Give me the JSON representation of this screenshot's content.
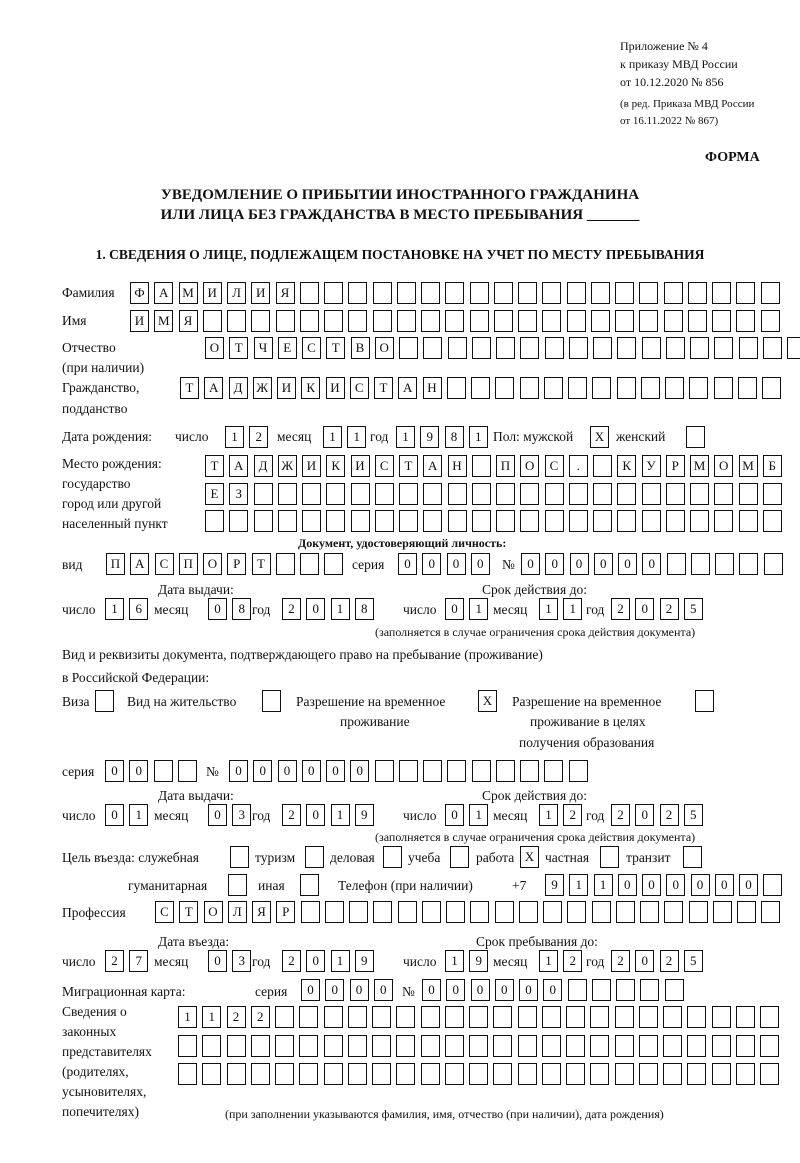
{
  "header": {
    "appendix": "Приложение № 4",
    "order": "к приказу МВД России",
    "order_date": "от 10.12.2020 № 856",
    "edition_1": "(в ред. Приказа МВД России",
    "edition_2": "от 16.11.2022 № 867)",
    "form_label": "ФОРМА",
    "title_1": "УВЕДОМЛЕНИЕ О ПРИБЫТИИ ИНОСТРАННОГО ГРАЖДАНИНА",
    "title_2": "ИЛИ ЛИЦА БЕЗ ГРАЖДАНСТВА В МЕСТО ПРЕБЫВАНИЯ _______",
    "section_1": "1. СВЕДЕНИЯ О ЛИЦЕ, ПОДЛЕЖАЩЕМ ПОСТАНОВКЕ НА УЧЕТ ПО МЕСТУ ПРЕБЫВАНИЯ"
  },
  "labels": {
    "surname": "Фамилия",
    "name": "Имя",
    "patronymic_1": "Отчество",
    "patronymic_2": "(при наличии)",
    "citizenship_1": "Гражданство,",
    "citizenship_2": "подданство",
    "birth_date": "Дата рождения:",
    "day": "число",
    "month": "месяц",
    "year": "год",
    "sex": "Пол: мужской",
    "female": "женский",
    "birthplace_1": "Место рождения:",
    "birthplace_2": "государство",
    "birthplace_3": "город или другой",
    "birthplace_4": "населенный пункт",
    "id_doc": "Документ, удостоверяющий личность:",
    "type": "вид",
    "series": "серия",
    "number": "№",
    "issue_date": "Дата выдачи:",
    "valid_until": "Срок действия до:",
    "validity_note": "(заполняется в случае ограничения срока действия документа)",
    "permit_doc_1": "Вид и реквизиты документа, подтверждающего право на пребывание (проживание)",
    "permit_doc_2": "в Российской Федерации:",
    "visa": "Виза",
    "residence": "Вид на жительство",
    "temp_permit_1": "Разрешение на временное",
    "temp_permit_2": "проживание",
    "edu_permit_1": "Разрешение на временное",
    "edu_permit_2": "проживание в целях",
    "edu_permit_3": "получения образования",
    "purpose": "Цель въезда: служебная",
    "tourism": "туризм",
    "business": "деловая",
    "study": "учеба",
    "work": "работа",
    "private": "частная",
    "transit": "транзит",
    "humanitarian": "гуманитарная",
    "other": "иная",
    "phone": "Телефон (при наличии)",
    "phone_prefix": "+7",
    "profession": "Профессия",
    "entry_date": "Дата въезда:",
    "stay_until": "Срок пребывания до:",
    "migration_card": "Миграционная карта:",
    "reps_1": "Сведения о",
    "reps_2": "законных",
    "reps_3": "представителях",
    "reps_4": "(родителях,",
    "reps_5": "усыновителях,",
    "reps_6": "попечителях)",
    "reps_note": "(при заполнении указываются фамилия, имя, отчество (при наличии), дата рождения)"
  },
  "person": {
    "surname": [
      "Ф",
      "А",
      "М",
      "И",
      "Л",
      "И",
      "Я",
      "",
      "",
      "",
      "",
      "",
      "",
      "",
      "",
      "",
      "",
      "",
      "",
      "",
      "",
      "",
      "",
      "",
      "",
      "",
      ""
    ],
    "name": [
      "И",
      "М",
      "Я",
      "",
      "",
      "",
      "",
      "",
      "",
      "",
      "",
      "",
      "",
      "",
      "",
      "",
      "",
      "",
      "",
      "",
      "",
      "",
      "",
      "",
      "",
      "",
      ""
    ],
    "patronymic": [
      "О",
      "Т",
      "Ч",
      "Е",
      "С",
      "Т",
      "В",
      "О",
      "",
      "",
      "",
      "",
      "",
      "",
      "",
      "",
      "",
      "",
      "",
      "",
      "",
      "",
      "",
      "",
      ""
    ],
    "citizenship": [
      "Т",
      "А",
      "Д",
      "Ж",
      "И",
      "К",
      "И",
      "С",
      "Т",
      "А",
      "Н",
      "",
      "",
      "",
      "",
      "",
      "",
      "",
      "",
      "",
      "",
      "",
      "",
      "",
      ""
    ],
    "birth_day": [
      "1",
      "2"
    ],
    "birth_month": [
      "1",
      "1"
    ],
    "birth_year": [
      "1",
      "9",
      "8",
      "1"
    ],
    "sex_male": [
      "X"
    ],
    "sex_female": [
      ""
    ],
    "birthplace_1": [
      "Т",
      "А",
      "Д",
      "Ж",
      "И",
      "К",
      "И",
      "С",
      "Т",
      "А",
      "Н",
      "",
      "П",
      "О",
      "С",
      ".",
      "",
      "К",
      "У",
      "Р",
      "М",
      "О",
      "М",
      "Б"
    ],
    "birthplace_2": [
      "Е",
      "З",
      "",
      "",
      "",
      "",
      "",
      "",
      "",
      "",
      "",
      "",
      "",
      "",
      "",
      "",
      "",
      "",
      "",
      "",
      "",
      "",
      "",
      ""
    ],
    "birthplace_3": [
      "",
      "",
      "",
      "",
      "",
      "",
      "",
      "",
      "",
      "",
      "",
      "",
      "",
      "",
      "",
      "",
      "",
      "",
      "",
      "",
      "",
      "",
      "",
      ""
    ]
  },
  "id_doc": {
    "type": [
      "П",
      "А",
      "С",
      "П",
      "О",
      "Р",
      "Т",
      "",
      "",
      ""
    ],
    "series": [
      "0",
      "0",
      "0",
      "0"
    ],
    "number": [
      "0",
      "0",
      "0",
      "0",
      "0",
      "0",
      "",
      "",
      "",
      "",
      ""
    ],
    "issue_day": [
      "1",
      "6"
    ],
    "issue_month": [
      "0",
      "8"
    ],
    "issue_year": [
      "2",
      "0",
      "1",
      "8"
    ],
    "valid_day": [
      "0",
      "1"
    ],
    "valid_month": [
      "1",
      "1"
    ],
    "valid_year": [
      "2",
      "0",
      "2",
      "5"
    ]
  },
  "permit": {
    "visa": [
      ""
    ],
    "residence": [
      ""
    ],
    "temp_permit": [
      "X"
    ],
    "edu_permit": [
      ""
    ],
    "series": [
      "0",
      "0",
      "",
      ""
    ],
    "number": [
      "0",
      "0",
      "0",
      "0",
      "0",
      "0",
      "",
      "",
      "",
      "",
      "",
      "",
      "",
      "",
      ""
    ],
    "issue_day": [
      "0",
      "1"
    ],
    "issue_month": [
      "0",
      "3"
    ],
    "issue_year": [
      "2",
      "0",
      "1",
      "9"
    ],
    "valid_day": [
      "0",
      "1"
    ],
    "valid_month": [
      "1",
      "2"
    ],
    "valid_year": [
      "2",
      "0",
      "2",
      "5"
    ]
  },
  "purpose": {
    "official": [
      ""
    ],
    "tourism": [
      ""
    ],
    "business": [
      ""
    ],
    "study": [
      ""
    ],
    "work": [
      "X"
    ],
    "private": [
      ""
    ],
    "transit": [
      ""
    ],
    "humanitarian": [
      ""
    ],
    "other": [
      ""
    ]
  },
  "phone": [
    "9",
    "1",
    "1",
    "0",
    "0",
    "0",
    "0",
    "0",
    "0",
    ""
  ],
  "profession": [
    "С",
    "Т",
    "О",
    "Л",
    "Я",
    "Р",
    "",
    "",
    "",
    "",
    "",
    "",
    "",
    "",
    "",
    "",
    "",
    "",
    "",
    "",
    "",
    "",
    "",
    "",
    "",
    ""
  ],
  "entry": {
    "day": [
      "2",
      "7"
    ],
    "month": [
      "0",
      "3"
    ],
    "year": [
      "2",
      "0",
      "1",
      "9"
    ],
    "until_day": [
      "1",
      "9"
    ],
    "until_month": [
      "1",
      "2"
    ],
    "until_year": [
      "2",
      "0",
      "2",
      "5"
    ]
  },
  "migration_card": {
    "series": [
      "0",
      "0",
      "0",
      "0"
    ],
    "number": [
      "0",
      "0",
      "0",
      "0",
      "0",
      "0",
      "",
      "",
      "",
      "",
      ""
    ]
  },
  "reps": {
    "row_1": [
      "1",
      "1",
      "2",
      "2",
      "",
      "",
      "",
      "",
      "",
      "",
      "",
      "",
      "",
      "",
      "",
      "",
      "",
      "",
      "",
      "",
      "",
      "",
      "",
      "",
      ""
    ],
    "row_2": [
      "",
      "",
      "",
      "",
      "",
      "",
      "",
      "",
      "",
      "",
      "",
      "",
      "",
      "",
      "",
      "",
      "",
      "",
      "",
      "",
      "",
      "",
      "",
      "",
      ""
    ],
    "row_3": [
      "",
      "",
      "",
      "",
      "",
      "",
      "",
      "",
      "",
      "",
      "",
      "",
      "",
      "",
      "",
      "",
      "",
      "",
      "",
      "",
      "",
      "",
      "",
      "",
      ""
    ]
  }
}
